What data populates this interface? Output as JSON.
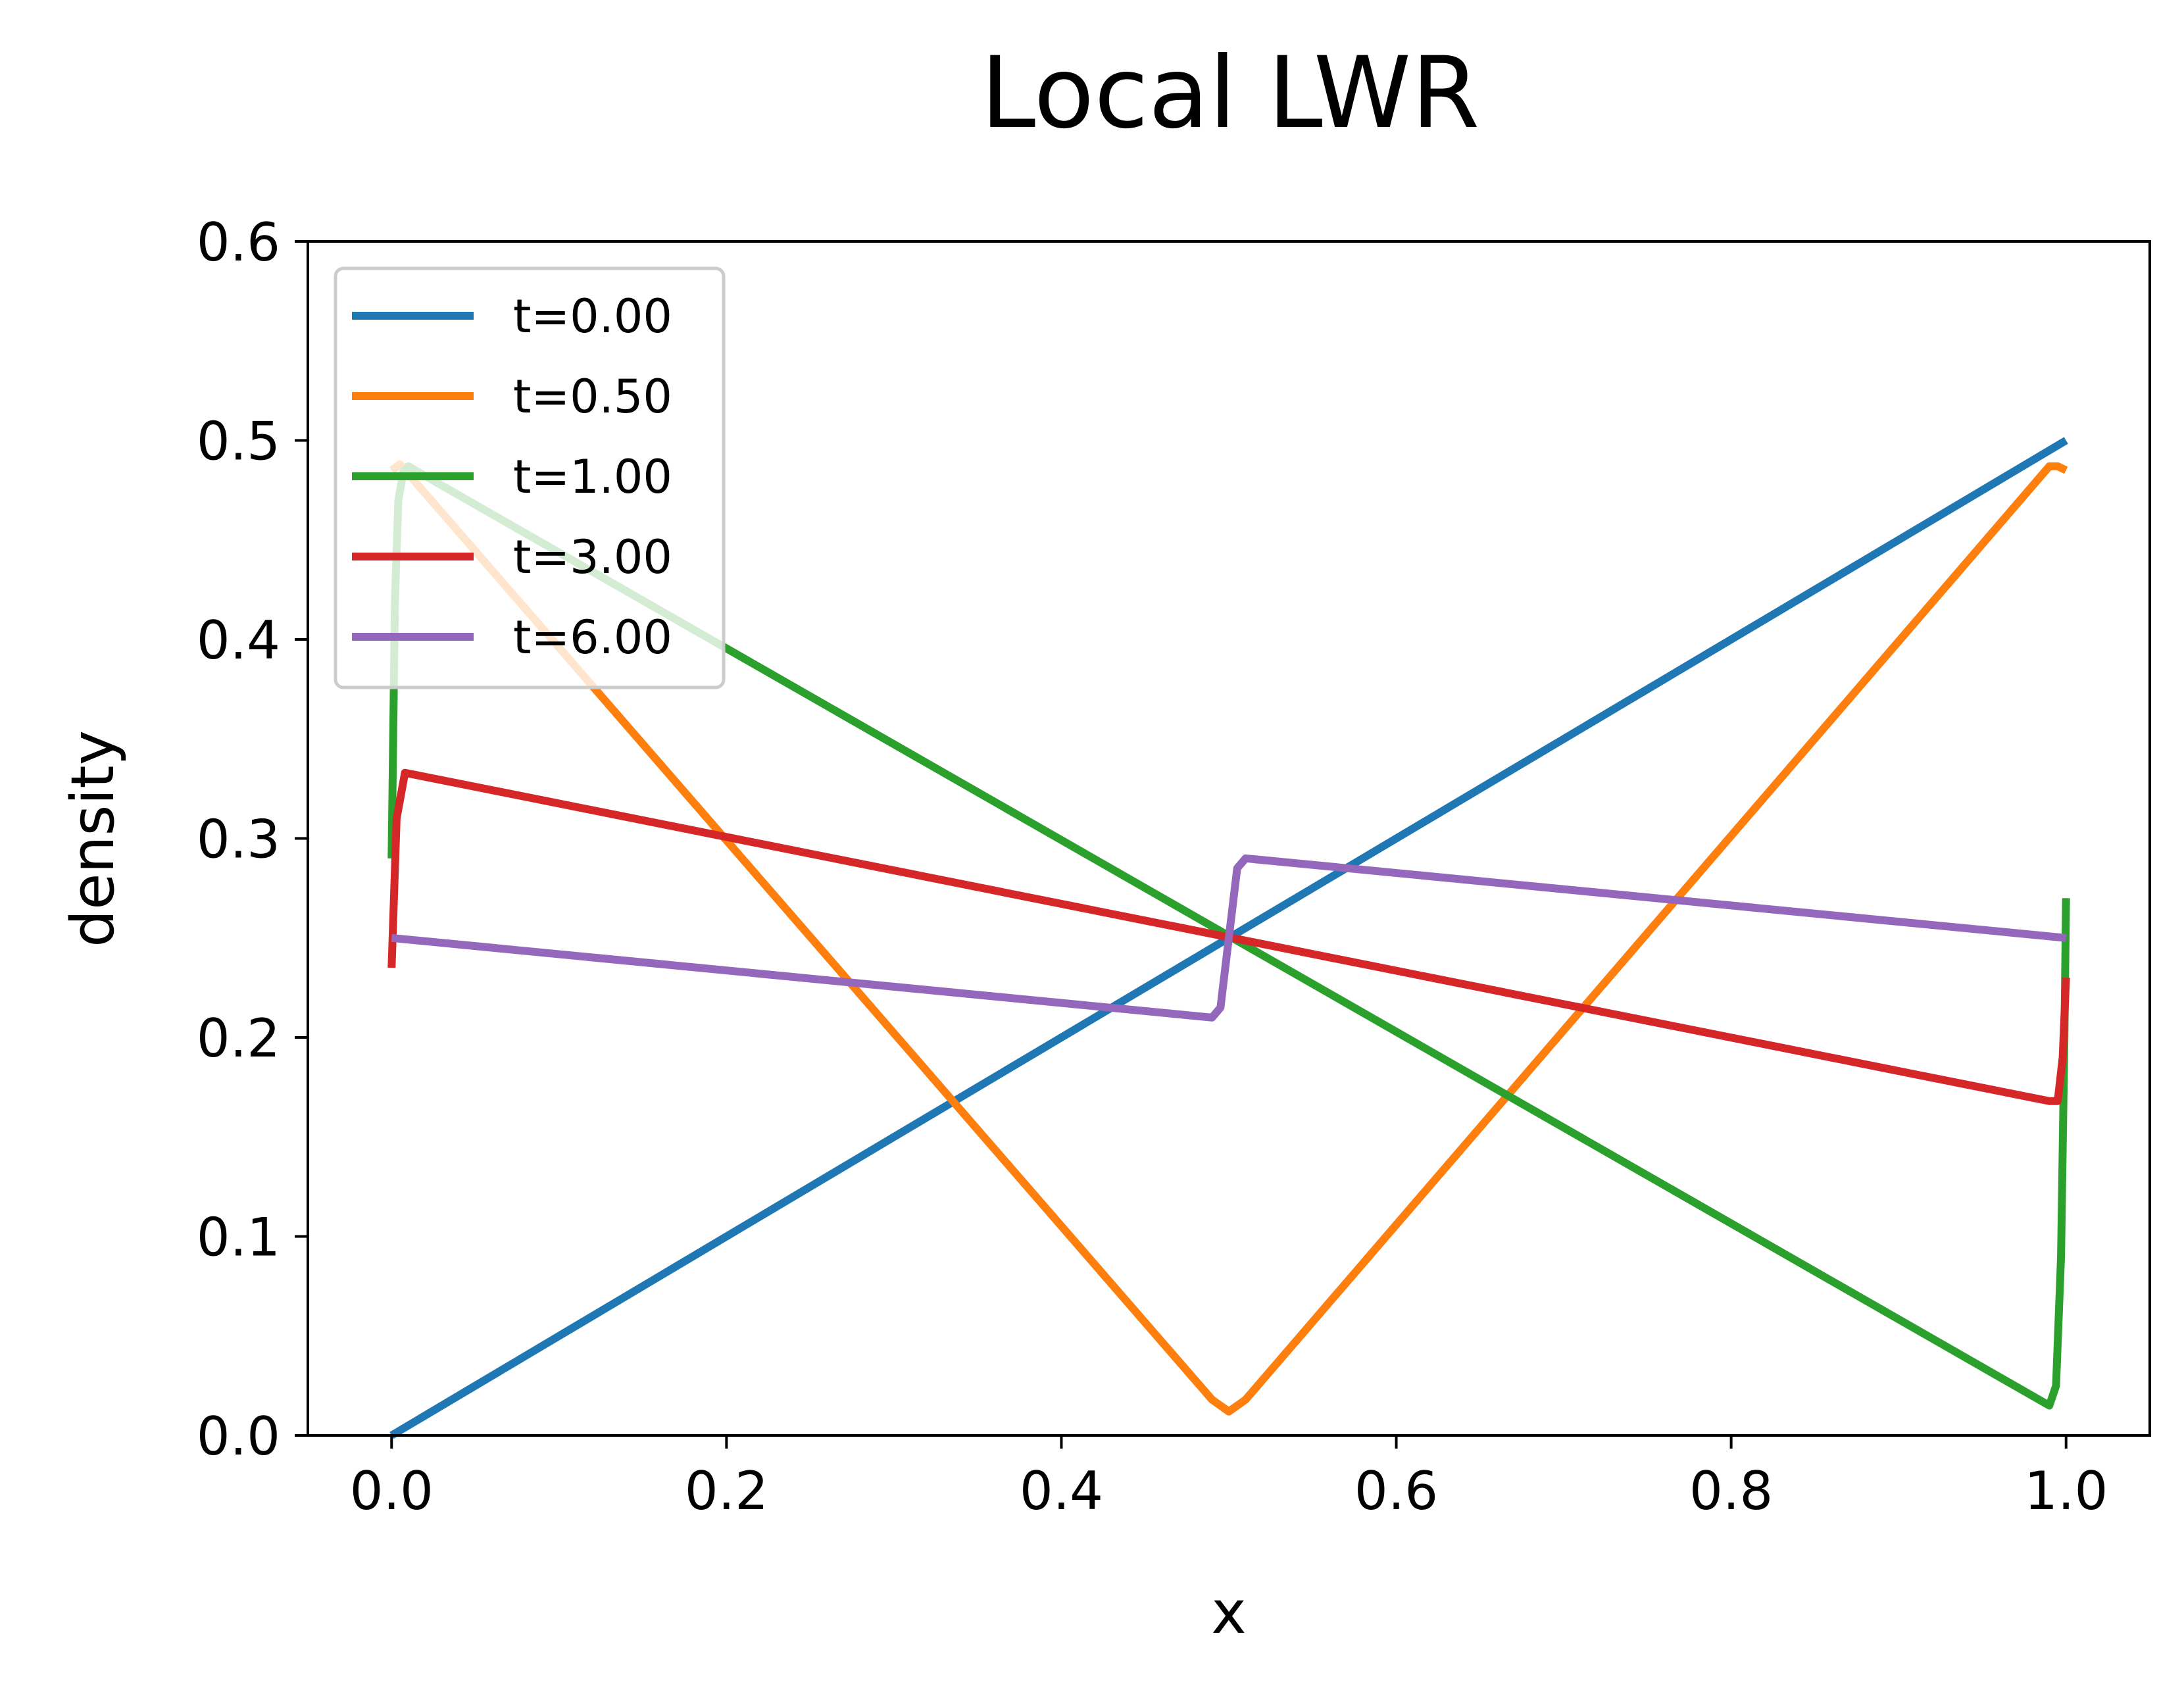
{
  "chart_data": {
    "type": "line",
    "title": "Local LWR",
    "xlabel": "x",
    "ylabel": "density",
    "xlim": [
      -0.05,
      1.05
    ],
    "ylim": [
      0.0,
      0.6
    ],
    "xticks": [
      0.0,
      0.2,
      0.4,
      0.6,
      0.8,
      1.0
    ],
    "xtick_labels": [
      "0.0",
      "0.2",
      "0.4",
      "0.6",
      "0.8",
      "1.0"
    ],
    "yticks": [
      0.0,
      0.1,
      0.2,
      0.3,
      0.4,
      0.5,
      0.6
    ],
    "ytick_labels": [
      "0.0",
      "0.1",
      "0.2",
      "0.3",
      "0.4",
      "0.5",
      "0.6"
    ],
    "grid": false,
    "legend_position": "upper-left",
    "series": [
      {
        "name": "t=0.00",
        "color": "#1f77b4",
        "x": [
          0.0,
          1.0
        ],
        "y": [
          0.0,
          0.5
        ]
      },
      {
        "name": "t=0.50",
        "color": "#ff7f0e",
        "x": [
          0.0,
          0.005,
          0.49,
          0.5,
          0.51,
          0.99,
          0.995,
          1.0
        ],
        "y": [
          0.485,
          0.488,
          0.018,
          0.012,
          0.018,
          0.487,
          0.487,
          0.485
        ]
      },
      {
        "name": "t=1.00",
        "color": "#2ca02c",
        "x": [
          0.0,
          0.002,
          0.004,
          0.007,
          0.01,
          0.99,
          0.994,
          0.997,
          0.999,
          1.0
        ],
        "y": [
          0.29,
          0.42,
          0.47,
          0.484,
          0.487,
          0.015,
          0.025,
          0.09,
          0.2,
          0.27
        ]
      },
      {
        "name": "t=3.00",
        "color": "#d62728",
        "x": [
          0.0,
          0.003,
          0.008,
          0.99,
          0.995,
          0.998,
          1.0
        ],
        "y": [
          0.235,
          0.31,
          0.333,
          0.168,
          0.168,
          0.19,
          0.23
        ]
      },
      {
        "name": "t=6.00",
        "color": "#9467bd",
        "x": [
          0.0,
          0.49,
          0.495,
          0.5,
          0.505,
          0.51,
          1.0
        ],
        "y": [
          0.25,
          0.21,
          0.215,
          0.25,
          0.285,
          0.29,
          0.25
        ]
      }
    ]
  }
}
